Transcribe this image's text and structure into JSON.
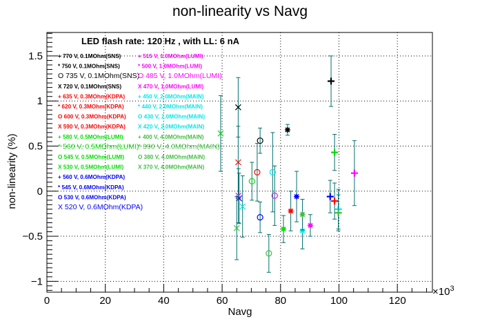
{
  "chart_data": {
    "type": "scatter",
    "title": "non-linearity vs Navg",
    "xlabel": "Navg",
    "ylabel": "non-linearity (%)",
    "x_multiplier": "×10",
    "x_multiplier_exp": "3",
    "annotation": "LED flash rate: 120 Hz , with LL: 6 nA",
    "xlim": [
      0,
      132
    ],
    "ylim": [
      -1.12,
      1.76
    ],
    "xticks": [
      0,
      20,
      40,
      60,
      80,
      100,
      120
    ],
    "yticks": [
      -1,
      -0.5,
      0,
      0.5,
      1,
      1.5
    ],
    "ytick_labels": [
      "−1",
      "−0.5",
      "0",
      "0.5",
      "1",
      "1.5"
    ],
    "grid": true,
    "series": [
      {
        "label": "770 V, 0.1MOhm(SNS)",
        "marker": "+",
        "color": "#000000",
        "x": 97.3,
        "y": 1.22,
        "err": 0.28
      },
      {
        "label": "750 V, 0.1MOhm(SNS)",
        "marker": "*",
        "color": "#000000",
        "x": 82.4,
        "y": 0.68,
        "err": 0.06
      },
      {
        "label": "735 V, 0.1MOhm(SNS)",
        "marker": "o",
        "color": "#000000",
        "x": 73.0,
        "y": 0.56,
        "err": 0.14
      },
      {
        "label": "720 V, 0.1MOhm(SNS)",
        "marker": "x",
        "color": "#000000",
        "x": 65.5,
        "y": 0.93,
        "err": 0.33
      },
      {
        "label": "635 V, 0.3MOhm(KDPA)",
        "marker": "+",
        "color": "#ff0000",
        "x": 98.5,
        "y": -0.11,
        "err": 0.2
      },
      {
        "label": "620 V, 0.3MOhm(KDPA)",
        "marker": "*",
        "color": "#ff0000",
        "x": 83.5,
        "y": -0.22,
        "err": 0.22
      },
      {
        "label": "600 V, 0.3MOhm(KDPA)",
        "marker": "o",
        "color": "#ff0000",
        "x": 72.0,
        "y": 0.21,
        "err": 0.32
      },
      {
        "label": "590 V, 0.3MOhm(KDPA)",
        "marker": "x",
        "color": "#ff0000",
        "x": 65.5,
        "y": 0.32,
        "err": 0.4
      },
      {
        "label": "580 V, 0.5MOhm(LUMI)",
        "marker": "+",
        "color": "#00dd00",
        "x": 98.5,
        "y": 0.43,
        "err": 0.2
      },
      {
        "label": "560 V, 0.5MOhm(LUMI)",
        "marker": "*",
        "color": "#00dd00",
        "x": 81.0,
        "y": -0.42,
        "err": 0.15
      },
      {
        "label": "545 V, 0.5MOhm(LUMI)",
        "marker": "o",
        "color": "#00dd00",
        "x": 70.2,
        "y": 0.11,
        "err": 0.21
      },
      {
        "label": "530 V, 0.5MOhm(LUMI)",
        "marker": "x",
        "color": "#00dd00",
        "x": 59.5,
        "y": 0.64,
        "err": 0.42
      },
      {
        "label": "560 V, 0.6MOhm(KDPA)",
        "marker": "+",
        "color": "#0000ff",
        "x": 97.0,
        "y": -0.06,
        "err": 0.18
      },
      {
        "label": "545 V, 0.6MOhm(KDPA)",
        "marker": "*",
        "color": "#0000ff",
        "x": 85.5,
        "y": -0.06,
        "err": 0.28
      },
      {
        "label": "530 V, 0.6MOhm(KDPA)",
        "marker": "o",
        "color": "#0000ff",
        "x": 73.0,
        "y": -0.29,
        "err": 0.17
      },
      {
        "label": "520 V, 0.6MOhm(KDPA)",
        "marker": "x",
        "color": "#0000ff",
        "x": 65.8,
        "y": -0.08,
        "err": 0.28
      },
      {
        "label": "515 V, 1.0MOhm(LUMI)",
        "marker": "+",
        "color": "#ff00ff",
        "x": 105.3,
        "y": 0.2,
        "err": 0.36
      },
      {
        "label": "500 V, 1.0MOhm(LUMI)",
        "marker": "*",
        "color": "#ff00ff",
        "x": 90.2,
        "y": -0.38,
        "err": 0.12
      },
      {
        "label": "485 V, 1.0MOhm(LUMI)",
        "marker": "o",
        "color": "#ff00ff",
        "x": 78.0,
        "y": -0.05,
        "err": 0.33
      },
      {
        "label": "470 V, 1.0MOhm(LUMI)",
        "marker": "x",
        "color": "#ff00ff",
        "x": 65.6,
        "y": -0.05,
        "err": 0.3
      },
      {
        "label": "450 V, 2.0MOhm(MAIN)",
        "marker": "+",
        "color": "#00e8e8",
        "x": 99.8,
        "y": -0.2,
        "err": 0.22
      },
      {
        "label": "440 V, 2.0MOhm(MAIN)",
        "marker": "*",
        "color": "#00e8e8",
        "x": 87.5,
        "y": -0.44,
        "err": 0.2
      },
      {
        "label": "430 V, 2.0MOhm(MAIN)",
        "marker": "o",
        "color": "#00e8e8",
        "x": 77.3,
        "y": 0.21,
        "err": 0.44
      },
      {
        "label": "420 V, 2.0MOhm(MAIN)",
        "marker": "x",
        "color": "#00e8e8",
        "x": 67.0,
        "y": -0.17,
        "err": 0.34
      },
      {
        "label": "400 V, 4.0MOhm(MAIN)",
        "marker": "+",
        "color": "#3fbe3f",
        "x": 99.8,
        "y": -0.24,
        "err": 0.2
      },
      {
        "label": "390 V, 4.0MOhm(MAIN)",
        "marker": "*",
        "color": "#3fbe3f",
        "x": 87.5,
        "y": -0.26,
        "err": 0.17
      },
      {
        "label": "380 V, 4.0MOhm(MAIN)",
        "marker": "o",
        "color": "#3fbe3f",
        "x": 76.0,
        "y": -0.69,
        "err": 0.21
      },
      {
        "label": "370 V, 4.0MOhm(MAIN)",
        "marker": "x",
        "color": "#3fbe3f",
        "x": 65.0,
        "y": -0.41,
        "err": 0.35
      }
    ],
    "legend": {
      "placement": "upper-left",
      "column1": [
        {
          "sym": "+",
          "text": "770 V, 0.1MOhm(SNS)",
          "color": "#000000",
          "big": false
        },
        {
          "sym": "*",
          "text": "750 V, 0.1MOhm(SNS)",
          "color": "#000000",
          "big": false
        },
        {
          "sym": "O",
          "text": "735 V, 0.1MOhm(SNS)",
          "color": "#000000",
          "big": true
        },
        {
          "sym": "X",
          "text": "720 V, 0.1MOhm(SNS)",
          "color": "#000000",
          "big": false
        },
        {
          "sym": "+",
          "text": "635 V, 0.3MOhm(KDPA)",
          "color": "#ff0000",
          "big": false
        },
        {
          "sym": "*",
          "text": "620 V, 0.3MOhm(KDPA)",
          "color": "#ff0000",
          "big": false
        },
        {
          "sym": "O",
          "text": "600 V, 0.3MOhm(KDPA)",
          "color": "#ff0000",
          "big": false
        },
        {
          "sym": "X",
          "text": "590 V, 0.3MOhm(KDPA)",
          "color": "#ff0000",
          "big": false
        },
        {
          "sym": "+",
          "text": "580 V, 0.5MOhm(LUMI)",
          "color": "#00dd00",
          "big": false
        },
        {
          "sym": "*",
          "text": "560 V, 0.5MOhm(LUMI)",
          "color": "#00dd00",
          "big": true
        },
        {
          "sym": "O",
          "text": "545 V, 0.5MOhm(LUMI)",
          "color": "#00dd00",
          "big": false
        },
        {
          "sym": "X",
          "text": "530 V, 0.5MOhm(LUMI)",
          "color": "#00dd00",
          "big": false
        },
        {
          "sym": "+",
          "text": "560 V, 0.6MOhm(KDPA)",
          "color": "#0000ff",
          "big": false
        },
        {
          "sym": "*",
          "text": "545 V, 0.6MOhm(KDPA)",
          "color": "#0000ff",
          "big": false
        },
        {
          "sym": "O",
          "text": "530 V, 0.6MOhm(KDPA)",
          "color": "#0000ff",
          "big": false
        },
        {
          "sym": "X",
          "text": "520 V, 0.6MOhm(KDPA)",
          "color": "#0000ff",
          "big": true
        }
      ],
      "column2": [
        {
          "sym": "+",
          "text": "515 V, 1.0MOhm(LUMI)",
          "color": "#ff00ff",
          "big": false
        },
        {
          "sym": "*",
          "text": "500 V, 1.0MOhm(LUMI)",
          "color": "#ff00ff",
          "big": false
        },
        {
          "sym": "O",
          "text": "485 V, 1.0MOhm(LUMI)",
          "color": "#ff00ff",
          "big": true
        },
        {
          "sym": "X",
          "text": "470 V, 1.0MOhm(LUMI)",
          "color": "#ff00ff",
          "big": false
        },
        {
          "sym": "+",
          "text": "450 V, 2.0MOhm(MAIN)",
          "color": "#00e8e8",
          "big": false
        },
        {
          "sym": "*",
          "text": "440 V, 2.0MOhm(MAIN)",
          "color": "#00e8e8",
          "big": false
        },
        {
          "sym": "O",
          "text": "430 V, 2.0MOhm(MAIN)",
          "color": "#00e8e8",
          "big": false
        },
        {
          "sym": "X",
          "text": "420 V, 2.0MOhm(MAIN)",
          "color": "#00e8e8",
          "big": false
        },
        {
          "sym": "+",
          "text": "400 V, 4.0MOhm(MAIN)",
          "color": "#3fbe3f",
          "big": false
        },
        {
          "sym": "*",
          "text": "390 V, 4.0MOhm(MAIN)",
          "color": "#3fbe3f",
          "big": true
        },
        {
          "sym": "O",
          "text": "380 V, 4.0MOhm(MAIN)",
          "color": "#3fbe3f",
          "big": false
        },
        {
          "sym": "X",
          "text": "370 V, 4.0MOhm(MAIN)",
          "color": "#3fbe3f",
          "big": false
        }
      ]
    }
  }
}
